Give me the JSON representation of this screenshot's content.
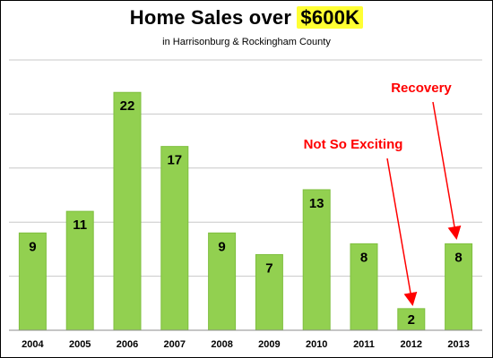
{
  "chart_data": {
    "type": "bar",
    "title_prefix": "Home Sales over ",
    "title_highlight": "$600K",
    "subtitle": "in Harrisonburg & Rockingham County",
    "categories": [
      "2004",
      "2005",
      "2006",
      "2007",
      "2008",
      "2009",
      "2010",
      "2011",
      "2012",
      "2013"
    ],
    "values": [
      9,
      11,
      22,
      17,
      9,
      7,
      13,
      8,
      2,
      8
    ],
    "ylim": [
      0,
      25
    ],
    "grid": true,
    "annotations": [
      {
        "text": "Not So Exciting",
        "target": "2012"
      },
      {
        "text": "Recovery",
        "target": "2013"
      }
    ]
  },
  "colors": {
    "bar": "#92d050",
    "bar_stroke": "#7fbf3f",
    "grid": "#c8c8c8",
    "highlight": "#ffff33",
    "annotation": "#ff0000"
  }
}
